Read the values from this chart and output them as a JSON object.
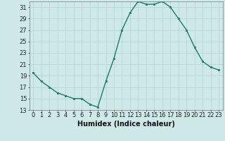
{
  "x": [
    0,
    1,
    2,
    3,
    4,
    5,
    6,
    7,
    8,
    9,
    10,
    11,
    12,
    13,
    14,
    15,
    16,
    17,
    18,
    19,
    20,
    21,
    22,
    23
  ],
  "y": [
    19.5,
    18.0,
    17.0,
    16.0,
    15.5,
    15.0,
    15.0,
    14.0,
    13.5,
    18.0,
    22.0,
    27.0,
    30.0,
    32.0,
    31.5,
    31.5,
    32.0,
    31.0,
    29.0,
    27.0,
    24.0,
    21.5,
    20.5,
    20.0
  ],
  "xlabel": "Humidex (Indice chaleur)",
  "xlim": [
    -0.5,
    23.5
  ],
  "ylim": [
    13,
    32
  ],
  "yticks": [
    13,
    15,
    17,
    19,
    21,
    23,
    25,
    27,
    29,
    31
  ],
  "xticks": [
    0,
    1,
    2,
    3,
    4,
    5,
    6,
    7,
    8,
    9,
    10,
    11,
    12,
    13,
    14,
    15,
    16,
    17,
    18,
    19,
    20,
    21,
    22,
    23
  ],
  "line_color": "#1e7a68",
  "bg_color": "#cee9e8",
  "grid_color": "#aed4d0",
  "label_fontsize": 7,
  "tick_fontsize": 6
}
